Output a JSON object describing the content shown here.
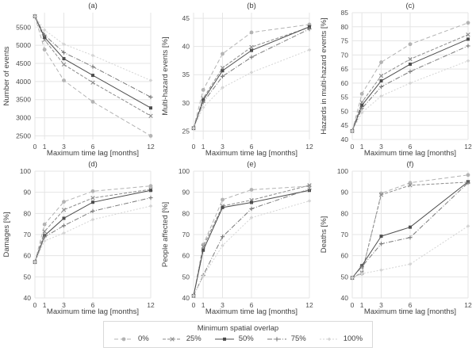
{
  "figure": {
    "xlabel": "Maximum time lag [months]",
    "x_max": 12,
    "x_ticks": [
      0,
      1,
      3,
      6,
      12
    ],
    "grid_color": "#e5e5e5",
    "text_color": "#404040",
    "tick_color": "#4d4d4d"
  },
  "legend": {
    "title": "Minimum spatial overlap",
    "items": [
      {
        "label": "0%",
        "marker": "circle",
        "color": "#b3b3b3",
        "dash": "5,3"
      },
      {
        "label": "25%",
        "marker": "x",
        "color": "#8c8c8c",
        "dash": "4,2"
      },
      {
        "label": "50%",
        "marker": "square",
        "color": "#4d4d4d",
        "dash": ""
      },
      {
        "label": "75%",
        "marker": "plus",
        "color": "#7a7a7a",
        "dash": "6,2,1,2"
      },
      {
        "label": "100%",
        "marker": "diamond",
        "color": "#d4d4d4",
        "dash": "2,2"
      }
    ]
  },
  "chart_data": [
    {
      "type": "line",
      "tag": "(a)",
      "ylabel": "Number of events",
      "ylim": [
        2400,
        5900
      ],
      "yticks": [
        2500,
        3000,
        3500,
        4000,
        4500,
        5000,
        5500
      ],
      "x": [
        0,
        1,
        3,
        6,
        12
      ],
      "series": [
        {
          "name": "0%",
          "values": [
            5800,
            4880,
            4030,
            3440,
            2500
          ]
        },
        {
          "name": "25%",
          "values": [
            5800,
            5150,
            4470,
            3970,
            3050
          ]
        },
        {
          "name": "50%",
          "values": [
            5800,
            5220,
            4630,
            4170,
            3270
          ]
        },
        {
          "name": "75%",
          "values": [
            5800,
            5280,
            4800,
            4410,
            3570
          ]
        },
        {
          "name": "100%",
          "values": [
            5800,
            5420,
            5030,
            4720,
            4030
          ]
        }
      ]
    },
    {
      "type": "line",
      "tag": "(b)",
      "ylabel": "Multi-hazard events [%]",
      "ylim": [
        23.5,
        46
      ],
      "yticks": [
        25,
        30,
        35,
        40,
        45
      ],
      "x": [
        0,
        1,
        3,
        6,
        12
      ],
      "series": [
        {
          "name": "0%",
          "values": [
            25.5,
            32.3,
            38.7,
            42.5,
            43.9
          ]
        },
        {
          "name": "25%",
          "values": [
            25.5,
            30.8,
            36.2,
            39.9,
            43.4
          ]
        },
        {
          "name": "50%",
          "values": [
            25.5,
            30.5,
            35.7,
            39.3,
            43.5
          ]
        },
        {
          "name": "75%",
          "values": [
            25.5,
            30.1,
            34.7,
            38.1,
            43.1
          ]
        },
        {
          "name": "100%",
          "values": [
            25.5,
            29.2,
            32.7,
            35.4,
            39.4
          ]
        }
      ]
    },
    {
      "type": "line",
      "tag": "(c)",
      "ylabel": "Hazards in multi-hazard events [%]",
      "ylim": [
        40,
        85
      ],
      "yticks": [
        40,
        45,
        50,
        55,
        60,
        65,
        70,
        75,
        80,
        85
      ],
      "x": [
        0,
        1,
        3,
        6,
        12
      ],
      "series": [
        {
          "name": "0%",
          "values": [
            43,
            56.2,
            67.4,
            73.8,
            81.4
          ]
        },
        {
          "name": "25%",
          "values": [
            43,
            53.2,
            62.6,
            68.5,
            77.2
          ]
        },
        {
          "name": "50%",
          "values": [
            43,
            52.1,
            60.8,
            66.7,
            75.6
          ]
        },
        {
          "name": "75%",
          "values": [
            43,
            51.0,
            58.7,
            64.1,
            73.2
          ]
        },
        {
          "name": "100%",
          "values": [
            43,
            49.5,
            55.4,
            60.0,
            67.9
          ]
        }
      ]
    },
    {
      "type": "line",
      "tag": "(d)",
      "ylabel": "Damages [%]",
      "ylim": [
        40,
        100
      ],
      "yticks": [
        40,
        50,
        60,
        70,
        80,
        90,
        100
      ],
      "x": [
        0,
        1,
        3,
        6,
        12
      ],
      "series": [
        {
          "name": "0%",
          "values": [
            57,
            74.8,
            85.5,
            90.5,
            93.0
          ]
        },
        {
          "name": "25%",
          "values": [
            57,
            71.5,
            81.7,
            87.3,
            91.4
          ]
        },
        {
          "name": "50%",
          "values": [
            57,
            69.5,
            77.7,
            85.3,
            90.9
          ]
        },
        {
          "name": "75%",
          "values": [
            57,
            68.9,
            74.2,
            81.1,
            87.4
          ]
        },
        {
          "name": "100%",
          "values": [
            57,
            67.0,
            70.7,
            77.1,
            83.5
          ]
        }
      ]
    },
    {
      "type": "line",
      "tag": "(e)",
      "ylabel": "People affected [%]",
      "ylim": [
        40,
        100
      ],
      "yticks": [
        40,
        50,
        60,
        70,
        80,
        90,
        100
      ],
      "x": [
        0,
        1,
        3,
        6,
        12
      ],
      "series": [
        {
          "name": "0%",
          "values": [
            41,
            65.2,
            86.5,
            91.2,
            92.9
          ]
        },
        {
          "name": "25%",
          "values": [
            41,
            64.3,
            83.5,
            86.3,
            93.3
          ]
        },
        {
          "name": "50%",
          "values": [
            41,
            62.6,
            82.8,
            85.2,
            90.9
          ]
        },
        {
          "name": "75%",
          "values": [
            41,
            50.7,
            69.0,
            82.2,
            91.5
          ]
        },
        {
          "name": "100%",
          "values": [
            41,
            50.3,
            64.8,
            78.0,
            85.9
          ]
        }
      ]
    },
    {
      "type": "line",
      "tag": "(f)",
      "ylabel": "Deaths [%]",
      "ylim": [
        40,
        100
      ],
      "yticks": [
        40,
        50,
        60,
        70,
        80,
        90,
        100
      ],
      "x": [
        0,
        1,
        3,
        6,
        12
      ],
      "series": [
        {
          "name": "0%",
          "values": [
            49.5,
            51.5,
            89.5,
            94.5,
            98.2
          ]
        },
        {
          "name": "25%",
          "values": [
            49.5,
            52.0,
            88.8,
            93.3,
            94.8
          ]
        },
        {
          "name": "50%",
          "values": [
            49.5,
            55.3,
            69.2,
            73.5,
            95.0
          ]
        },
        {
          "name": "75%",
          "values": [
            49.5,
            54.8,
            65.6,
            68.6,
            94.5
          ]
        },
        {
          "name": "100%",
          "values": [
            49.5,
            51.5,
            53.2,
            56.0,
            74.0
          ]
        }
      ]
    }
  ]
}
